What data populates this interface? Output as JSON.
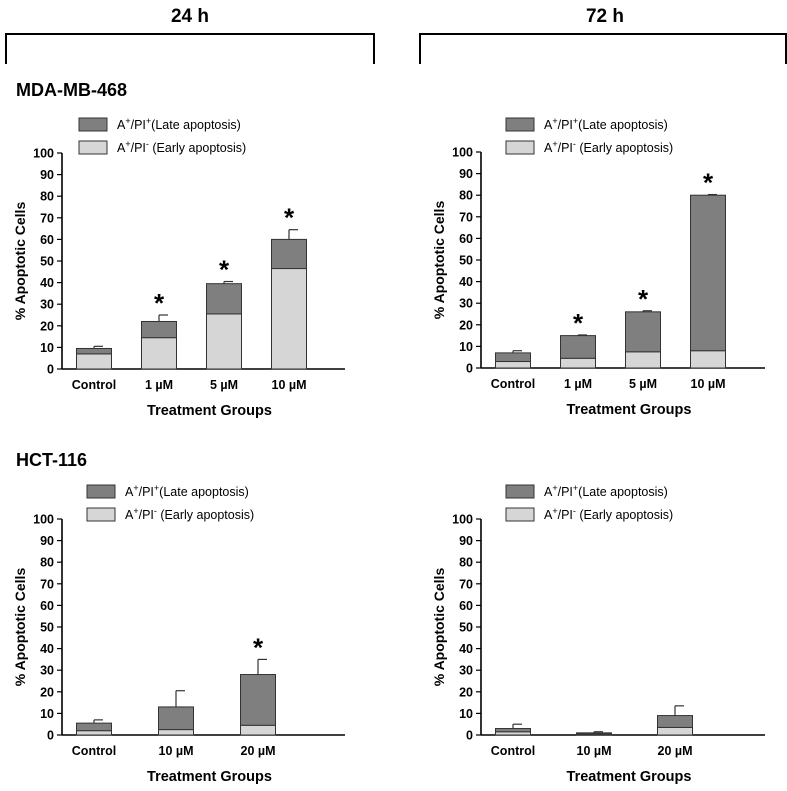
{
  "colors": {
    "late": "#7f7f7f",
    "early": "#d6d6d6",
    "edge": "#333333",
    "axis": "#000000"
  },
  "headers": {
    "left": "24 h",
    "right": "72 h"
  },
  "rows": [
    {
      "label": "MDA-MB-468"
    },
    {
      "label": "HCT-116"
    }
  ],
  "chart_data": [
    {
      "id": "mda-24h",
      "type": "bar",
      "stacked": true,
      "title": "24 h",
      "cell_line": "MDA-MB-468",
      "categories": [
        "Control",
        "1 µM",
        "5 µM",
        "10 µM"
      ],
      "series": [
        {
          "name": "A⁺/PI⁻ (Early apoptosis)",
          "legend_main": "A",
          "legend_sup1": "+",
          "legend_mid": "/PI",
          "legend_sup2": "-",
          "legend_tail": " (Early apoptosis)",
          "values": [
            7,
            14.5,
            25.5,
            46.5
          ]
        },
        {
          "name": "A⁺/PI⁺ (Late apoptosis)",
          "legend_main": "A",
          "legend_sup1": "+",
          "legend_mid": "/PI",
          "legend_sup2": "+",
          "legend_tail": "(Late apoptosis)",
          "values": [
            2.5,
            7.5,
            14,
            13.5
          ]
        }
      ],
      "error_up": [
        1,
        3,
        1,
        4.5
      ],
      "significant": [
        false,
        true,
        true,
        true
      ],
      "xlabel": "Treatment Groups",
      "ylabel": "% Apoptotic Cells",
      "ylim": [
        0,
        100
      ],
      "yticks": [
        0,
        10,
        20,
        30,
        40,
        50,
        60,
        70,
        80,
        90,
        100
      ],
      "marker": "*"
    },
    {
      "id": "mda-72h",
      "type": "bar",
      "stacked": true,
      "title": "72 h",
      "cell_line": "MDA-MB-468",
      "categories": [
        "Control",
        "1 µM",
        "5 µM",
        "10 µM"
      ],
      "series": [
        {
          "name": "A⁺/PI⁻ (Early apoptosis)",
          "legend_main": "A",
          "legend_sup1": "+",
          "legend_mid": "/PI",
          "legend_sup2": "-",
          "legend_tail": " (Early apoptosis)",
          "values": [
            3,
            4.5,
            7.5,
            8
          ]
        },
        {
          "name": "A⁺/PI⁺ (Late apoptosis)",
          "legend_main": "A",
          "legend_sup1": "+",
          "legend_mid": "/PI",
          "legend_sup2": "+",
          "legend_tail": "(Late apoptosis)",
          "values": [
            4,
            10.5,
            18.5,
            72
          ]
        }
      ],
      "error_up": [
        1,
        0.3,
        0.5,
        0.3
      ],
      "significant": [
        false,
        true,
        true,
        true
      ],
      "xlabel": "Treatment Groups",
      "ylabel": "% Apoptotic Cells",
      "ylim": [
        0,
        100
      ],
      "yticks": [
        0,
        10,
        20,
        30,
        40,
        50,
        60,
        70,
        80,
        90,
        100
      ],
      "marker": "*"
    },
    {
      "id": "hct-24h",
      "type": "bar",
      "stacked": true,
      "title": "24 h",
      "cell_line": "HCT-116",
      "categories": [
        "Control",
        "10 µM",
        "20 µM"
      ],
      "series": [
        {
          "name": "A⁺/PI⁻ (Early apoptosis)",
          "legend_main": "A",
          "legend_sup1": "+",
          "legend_mid": "/PI",
          "legend_sup2": "-",
          "legend_tail": " (Early apoptosis)",
          "values": [
            2,
            2.5,
            4.5
          ]
        },
        {
          "name": "A⁺/PI⁺ (Late apoptosis)",
          "legend_main": "A",
          "legend_sup1": "+",
          "legend_mid": "/PI",
          "legend_sup2": "+",
          "legend_tail": "(Late apoptosis)",
          "values": [
            3.5,
            10.5,
            23.5
          ]
        }
      ],
      "error_up": [
        1.5,
        7.5,
        7
      ],
      "significant": [
        false,
        false,
        true
      ],
      "xlabel": "Treatment Groups",
      "ylabel": "% Apoptotic Cells",
      "ylim": [
        0,
        100
      ],
      "yticks": [
        0,
        10,
        20,
        30,
        40,
        50,
        60,
        70,
        80,
        90,
        100
      ],
      "marker": "*"
    },
    {
      "id": "hct-72h",
      "type": "bar",
      "stacked": true,
      "title": "72 h",
      "cell_line": "HCT-116",
      "categories": [
        "Control",
        "10 µM",
        "20 µM"
      ],
      "series": [
        {
          "name": "A⁺/PI⁻ (Early apoptosis)",
          "legend_main": "A",
          "legend_sup1": "+",
          "legend_mid": "/PI",
          "legend_sup2": "-",
          "legend_tail": " (Early apoptosis)",
          "values": [
            1.5,
            0.5,
            3.5
          ]
        },
        {
          "name": "A⁺/PI⁺ (Late apoptosis)",
          "legend_main": "A",
          "legend_sup1": "+",
          "legend_mid": "/PI",
          "legend_sup2": "+",
          "legend_tail": "(Late apoptosis)",
          "values": [
            1.5,
            0.5,
            5.5
          ]
        }
      ],
      "error_up": [
        2,
        0.5,
        4.5
      ],
      "significant": [
        false,
        false,
        false
      ],
      "xlabel": "Treatment Groups",
      "ylabel": "% Apoptotic Cells",
      "ylim": [
        0,
        100
      ],
      "yticks": [
        0,
        10,
        20,
        30,
        40,
        50,
        60,
        70,
        80,
        90,
        100
      ],
      "marker": "*"
    }
  ]
}
